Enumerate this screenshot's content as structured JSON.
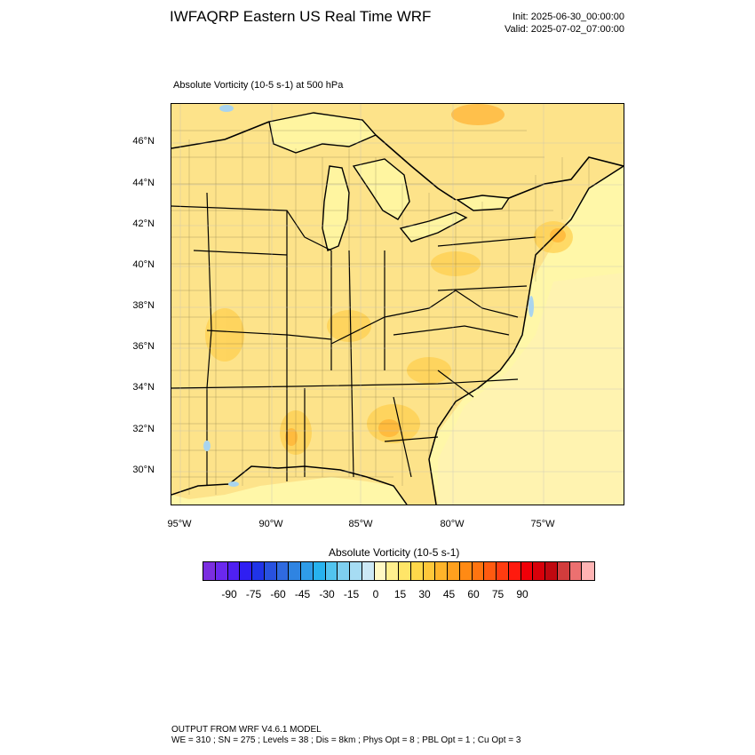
{
  "header": {
    "title": "IWFAQRP Eastern US Real Time WRF",
    "init": "Init: 2025-06-30_00:00:00",
    "valid": "Valid: 2025-07-02_07:00:00"
  },
  "map": {
    "subtitle": "Absolute Vorticity   (10-5 s-1)     at   500 hPa",
    "lat_labels": [
      "46°N",
      "44°N",
      "42°N",
      "40°N",
      "38°N",
      "36°N",
      "34°N",
      "32°N",
      "30°N"
    ],
    "lon_labels": [
      "95°W",
      "90°W",
      "85°W",
      "80°W",
      "75°W"
    ],
    "background_color": "#fff7a8",
    "land_color": "#fde38a",
    "water_color": "#a9d4ee"
  },
  "colorbar": {
    "title": "Absolute Vorticity  (10-5 s-1)",
    "labels": [
      "-90",
      "-75",
      "-60",
      "-45",
      "-30",
      "-15",
      "0",
      "15",
      "30",
      "45",
      "60",
      "75",
      "90"
    ],
    "colors": [
      "#7b2ee0",
      "#6a28ee",
      "#4f20f2",
      "#2f1ff2",
      "#2034e8",
      "#2852e0",
      "#2f6ae0",
      "#2f84e2",
      "#2f9ce8",
      "#27b2ee",
      "#52c4ef",
      "#7ecff0",
      "#a6dcf3",
      "#cce9f6",
      "#fff9c4",
      "#fff08e",
      "#ffe568",
      "#ffd84a",
      "#ffc83a",
      "#ffb42a",
      "#ffa01e",
      "#ff8a14",
      "#ff7410",
      "#ff5a10",
      "#ff3c10",
      "#ff1a0e",
      "#f00008",
      "#d8000a",
      "#c00810",
      "#d23c3c",
      "#ec7070",
      "#ffb4b4"
    ]
  },
  "footer": {
    "line1": "OUTPUT FROM WRF V4.6.1 MODEL",
    "line2": "WE = 310 ; SN = 275 ; Levels = 38 ; Dis = 8km ; Phys Opt = 8 ; PBL Opt = 1 ; Cu Opt = 3"
  }
}
